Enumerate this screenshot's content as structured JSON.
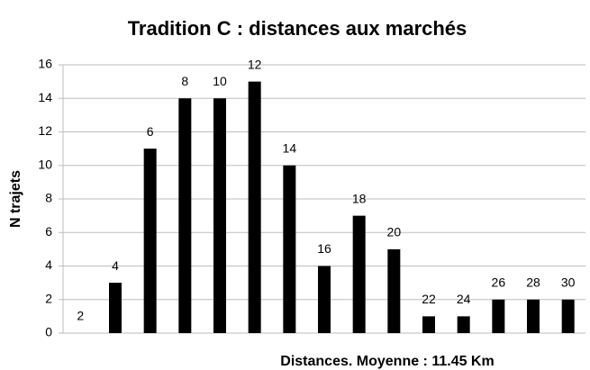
{
  "chart_data": {
    "type": "bar",
    "title": "Tradition C : distances aux marchés",
    "xlabel": "Distances. Moyenne : 11.45 Km",
    "ylabel": "N trajets",
    "categories": [
      "2",
      "4",
      "6",
      "8",
      "10",
      "12",
      "14",
      "16",
      "18",
      "20",
      "22",
      "24",
      "26",
      "28",
      "30"
    ],
    "values": [
      0,
      3,
      11,
      14,
      14,
      15,
      10,
      4,
      7,
      5,
      1,
      1,
      2,
      2,
      2
    ],
    "color": "#000000",
    "ylim": [
      0,
      16
    ],
    "yticks": [
      0,
      2,
      4,
      6,
      8,
      10,
      12,
      14,
      16
    ],
    "grid": true
  }
}
